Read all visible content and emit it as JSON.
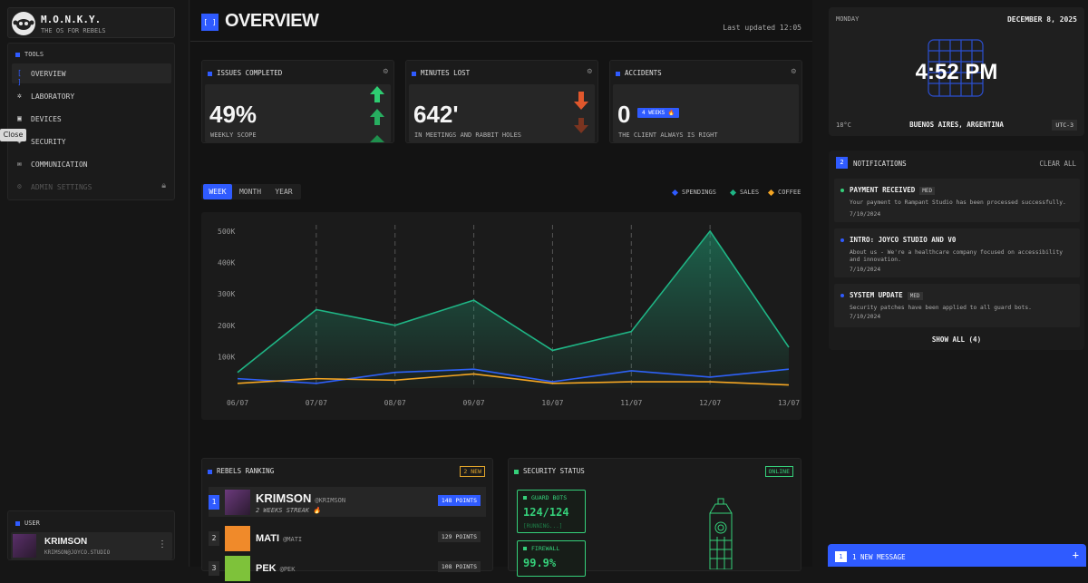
{
  "brand": {
    "title": "M.O.N.K.Y.",
    "subtitle": "THE OS FOR REBELS"
  },
  "nav": {
    "section": "TOOLS",
    "items": [
      {
        "label": "OVERVIEW",
        "icon": "bracket-icon"
      },
      {
        "label": "LABORATORY",
        "icon": "atom-icon"
      },
      {
        "label": "DEVICES",
        "icon": "cpu-icon"
      },
      {
        "label": "SECURITY",
        "icon": "shield-icon"
      },
      {
        "label": "COMMUNICATION",
        "icon": "mail-icon"
      },
      {
        "label": "ADMIN SETTINGS",
        "icon": "gear-icon"
      }
    ],
    "tooltip": "Close"
  },
  "user": {
    "section": "USER",
    "name": "KRIMSON",
    "email": "KRIMSON@JOYCO.STUDIO"
  },
  "header": {
    "badge": "[ ]",
    "title": "OVERVIEW",
    "updated": "Last updated 12:05"
  },
  "stats": [
    {
      "title": "ISSUES COMPLETED",
      "value": "49%",
      "sub": "WEEKLY SCOPE"
    },
    {
      "title": "MINUTES LOST",
      "value": "642'",
      "sub": "IN MEETINGS AND RABBIT HOLES"
    },
    {
      "title": "ACCIDENTS",
      "value": "0",
      "badge": "4 WEEKS 🔥",
      "sub": "THE CLIENT ALWAYS IS RIGHT"
    }
  ],
  "tabs": [
    "WEEK",
    "MONTH",
    "YEAR"
  ],
  "legend": [
    {
      "name": "SPENDINGS",
      "color": "#2f5bff"
    },
    {
      "name": "SALES",
      "color": "#1fb585"
    },
    {
      "name": "COFFEE",
      "color": "#f5a623"
    }
  ],
  "chart_data": {
    "type": "area",
    "categories": [
      "06/07",
      "07/07",
      "08/07",
      "09/07",
      "10/07",
      "11/07",
      "12/07",
      "13/07"
    ],
    "ylim": [
      0,
      520000
    ],
    "yticks": [
      "100K",
      "200K",
      "300K",
      "400K",
      "500K"
    ],
    "grid": "vertical dashed",
    "series": [
      {
        "name": "SPENDINGS",
        "color": "#2f5bff",
        "values": [
          30000,
          15000,
          50000,
          60000,
          20000,
          55000,
          35000,
          60000
        ]
      },
      {
        "name": "SALES",
        "color": "#1fb585",
        "values": [
          50000,
          250000,
          200000,
          280000,
          120000,
          180000,
          500000,
          130000
        ]
      },
      {
        "name": "COFFEE",
        "color": "#f5a623",
        "values": [
          15000,
          30000,
          25000,
          45000,
          15000,
          20000,
          20000,
          10000
        ]
      }
    ]
  },
  "ranking": {
    "title": "REBELS RANKING",
    "badge": "2 NEW",
    "rows": [
      {
        "rank": "1",
        "name": "KRIMSON",
        "handle": "@KRIMSON",
        "streak": "2 WEEKS STREAK 🔥",
        "points": "148 POINTS",
        "color": "#5a2f6a"
      },
      {
        "rank": "2",
        "name": "MATI",
        "handle": "@MATI",
        "points": "129 POINTS",
        "color": "#f08a2a"
      },
      {
        "rank": "3",
        "name": "PEK",
        "handle": "@PEK",
        "points": "108 POINTS",
        "color": "#7ec23a"
      }
    ]
  },
  "security": {
    "title": "SECURITY STATUS",
    "status": "ONLINE",
    "boxes": [
      {
        "title": "GUARD BOTS",
        "value": "124/124",
        "sub": "[RUNNING...]"
      },
      {
        "title": "FIREWALL",
        "value": "99.9%"
      }
    ]
  },
  "clock": {
    "day": "MONDAY",
    "date": "DECEMBER 8, 2025",
    "time": "4:52 PM",
    "temp": "18°C",
    "location": "BUENOS AIRES, ARGENTINA",
    "tz": "UTC-3"
  },
  "notifications": {
    "count": "2",
    "title": "NOTIFICATIONS",
    "clear": "CLEAR ALL",
    "show_all": "SHOW ALL (4)",
    "items": [
      {
        "title": "PAYMENT RECEIVED",
        "tag": "MED",
        "body": "Your payment to Rampant Studio has been processed successfully.",
        "date": "7/10/2024",
        "color": "#35d07a"
      },
      {
        "title": "INTRO: JOYCO STUDIO AND V0",
        "body": "About us - We're a healthcare company focused on accessibility and innovation.",
        "date": "7/10/2024",
        "color": "#2f5bff"
      },
      {
        "title": "SYSTEM UPDATE",
        "tag": "MED",
        "body": "Security patches have been applied to all guard bots.",
        "date": "7/10/2024",
        "color": "#2f5bff"
      }
    ]
  },
  "message": {
    "count": "1",
    "text": "1 NEW MESSAGE"
  }
}
